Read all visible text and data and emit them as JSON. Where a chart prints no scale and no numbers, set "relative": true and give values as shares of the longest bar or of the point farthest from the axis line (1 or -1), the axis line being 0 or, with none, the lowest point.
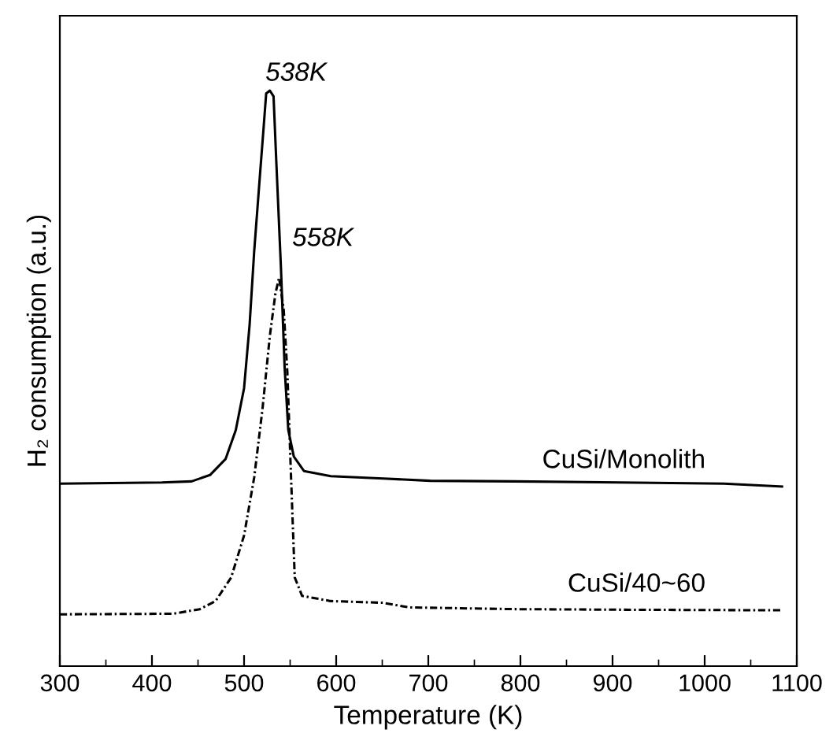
{
  "chart_data": {
    "type": "line",
    "relative": true,
    "xlabel": "Temperature (K)",
    "ylabel": "H₂ consumption (a.u.)",
    "xlim": [
      300,
      1100
    ],
    "xticks": [
      300,
      400,
      500,
      600,
      700,
      800,
      900,
      1000,
      1100
    ],
    "tick_labels": "x",
    "grid": false,
    "marker": "none",
    "annotations": [
      {
        "text": "538K",
        "x": 528,
        "y": 1.0
      },
      {
        "text": "558K",
        "x": 538,
        "y": 0.675
      }
    ],
    "series": [
      {
        "name": "CuSi/Monolith",
        "color": "#000000",
        "line_style": "solid",
        "x": [
          300,
          411,
          443,
          463,
          480,
          491,
          500,
          506,
          511,
          517,
          521,
          524,
          528,
          532,
          535,
          540,
          544,
          548,
          554,
          565,
          594,
          651,
          702,
          793,
          907,
          1021,
          1084
        ],
        "values": [
          0.317,
          0.319,
          0.321,
          0.332,
          0.36,
          0.41,
          0.483,
          0.593,
          0.721,
          0.848,
          0.931,
          0.995,
          1.0,
          0.99,
          0.876,
          0.693,
          0.52,
          0.41,
          0.364,
          0.339,
          0.33,
          0.326,
          0.322,
          0.321,
          0.319,
          0.317,
          0.312
        ]
      },
      {
        "name": "CuSi/40~60",
        "color": "#000000",
        "line_style": "dashed",
        "x": [
          300,
          423,
          452,
          469,
          486,
          500,
          511,
          520,
          528,
          534,
          538,
          543,
          547,
          551,
          555,
          563,
          594,
          651,
          679,
          793,
          907,
          1084
        ],
        "values": [
          0.09,
          0.091,
          0.099,
          0.113,
          0.154,
          0.227,
          0.328,
          0.447,
          0.574,
          0.647,
          0.675,
          0.62,
          0.51,
          0.328,
          0.154,
          0.122,
          0.113,
          0.11,
          0.102,
          0.099,
          0.098,
          0.097
        ]
      }
    ]
  }
}
